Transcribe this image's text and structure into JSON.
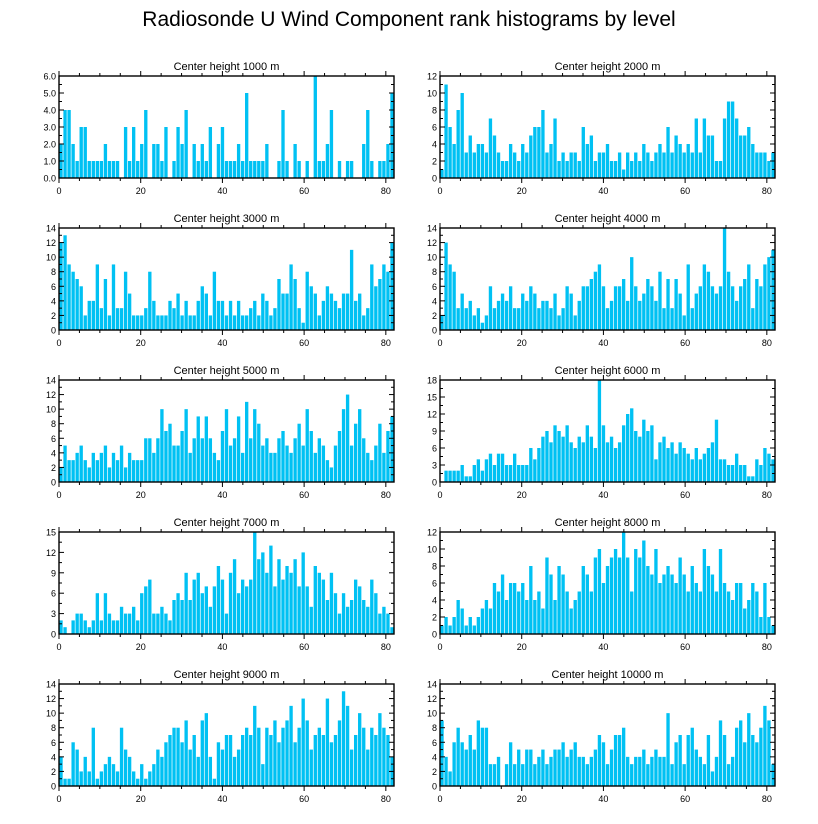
{
  "title": "Radiosonde U Wind Component rank histograms by level",
  "colors": {
    "bar": "#00c1f3",
    "axis": "#000000",
    "background": "#ffffff"
  },
  "chart_data": [
    {
      "type": "bar",
      "title": "Center height 1000 m",
      "xlim": [
        0,
        82
      ],
      "ylim": [
        0,
        6
      ],
      "yticks": [
        0,
        1,
        2,
        3,
        4,
        5,
        6
      ],
      "ytick_labels": [
        "0.0",
        "1.0",
        "2.0",
        "3.0",
        "4.0",
        "5.0",
        "6.0"
      ],
      "xticks": [
        0,
        20,
        40,
        60,
        80
      ],
      "xtick_labels": [
        "0",
        "20",
        "40",
        "60",
        "80"
      ],
      "values": [
        2,
        4,
        4,
        2,
        1,
        3,
        3,
        1,
        1,
        1,
        1,
        2,
        1,
        1,
        1,
        0,
        3,
        1,
        3,
        1,
        2,
        4,
        0,
        2,
        2,
        1,
        3,
        0,
        1,
        3,
        2,
        4,
        0,
        2,
        1,
        2,
        1,
        3,
        0,
        2,
        3,
        1,
        1,
        1,
        2,
        1,
        5,
        1,
        1,
        1,
        1,
        2,
        0,
        0,
        1,
        4,
        1,
        0,
        2,
        1,
        0,
        1,
        0,
        6,
        1,
        1,
        2,
        4,
        0,
        1,
        0,
        1,
        1,
        0,
        0,
        2,
        4,
        1,
        0,
        1,
        1,
        2,
        5
      ]
    },
    {
      "type": "bar",
      "title": "Center height 2000 m",
      "xlim": [
        0,
        82
      ],
      "ylim": [
        0,
        12
      ],
      "yticks": [
        0,
        2,
        4,
        6,
        8,
        10,
        12
      ],
      "ytick_labels": [
        "0",
        "2",
        "4",
        "6",
        "8",
        "10",
        "12"
      ],
      "xticks": [
        0,
        20,
        40,
        60,
        80
      ],
      "xtick_labels": [
        "0",
        "20",
        "40",
        "60",
        "80"
      ],
      "values": [
        1,
        11,
        6,
        4,
        8,
        10,
        3,
        5,
        3,
        4,
        4,
        3,
        7,
        5,
        3,
        2,
        2,
        4,
        3,
        2,
        4,
        3,
        5,
        6,
        6,
        8,
        3,
        4,
        7,
        2,
        3,
        2,
        3,
        3,
        2,
        6,
        4,
        5,
        2,
        3,
        3,
        4,
        2,
        2,
        3,
        1,
        3,
        2,
        3,
        2,
        4,
        3,
        2,
        3,
        4,
        3,
        6,
        3,
        5,
        4,
        3,
        4,
        3,
        7,
        3,
        7,
        5,
        5,
        2,
        2,
        7,
        9,
        9,
        7,
        5,
        5,
        6,
        4,
        3,
        3,
        3,
        2,
        3
      ]
    },
    {
      "type": "bar",
      "title": "Center height 3000 m",
      "xlim": [
        0,
        82
      ],
      "ylim": [
        0,
        14
      ],
      "yticks": [
        0,
        2,
        4,
        6,
        8,
        10,
        12,
        14
      ],
      "ytick_labels": [
        "0",
        "2",
        "4",
        "6",
        "8",
        "10",
        "12",
        "14"
      ],
      "xticks": [
        0,
        20,
        40,
        60,
        80
      ],
      "xtick_labels": [
        "0",
        "20",
        "40",
        "60",
        "80"
      ],
      "values": [
        12,
        13,
        9,
        8,
        7,
        6,
        2,
        4,
        4,
        9,
        3,
        7,
        2,
        9,
        3,
        3,
        8,
        5,
        2,
        2,
        2,
        3,
        8,
        4,
        2,
        2,
        2,
        4,
        3,
        5,
        2,
        4,
        2,
        2,
        4,
        6,
        5,
        2,
        8,
        4,
        4,
        2,
        4,
        2,
        4,
        2,
        2,
        3,
        4,
        2,
        5,
        4,
        2,
        3,
        7,
        5,
        5,
        9,
        7,
        3,
        1,
        8,
        6,
        5,
        2,
        4,
        6,
        5,
        4,
        3,
        5,
        5,
        11,
        4,
        5,
        2,
        3,
        9,
        6,
        7,
        9,
        8,
        12
      ]
    },
    {
      "type": "bar",
      "title": "Center height 4000 m",
      "xlim": [
        0,
        82
      ],
      "ylim": [
        0,
        14
      ],
      "yticks": [
        0,
        2,
        4,
        6,
        8,
        10,
        12,
        14
      ],
      "ytick_labels": [
        "0",
        "2",
        "4",
        "6",
        "8",
        "10",
        "12",
        "14"
      ],
      "xticks": [
        0,
        20,
        40,
        60,
        80
      ],
      "xtick_labels": [
        "0",
        "20",
        "40",
        "60",
        "80"
      ],
      "values": [
        2,
        12,
        9,
        8,
        3,
        5,
        3,
        4,
        2,
        3,
        1,
        2,
        6,
        3,
        4,
        5,
        4,
        6,
        3,
        3,
        5,
        4,
        6,
        5,
        3,
        4,
        4,
        3,
        5,
        2,
        3,
        6,
        5,
        2,
        4,
        6,
        6,
        7,
        8,
        9,
        6,
        3,
        4,
        6,
        6,
        7,
        4,
        10,
        6,
        4,
        5,
        7,
        6,
        4,
        8,
        3,
        7,
        3,
        7,
        5,
        2,
        9,
        3,
        5,
        6,
        9,
        8,
        6,
        5,
        6,
        14,
        8,
        6,
        4,
        6,
        7,
        9,
        3,
        7,
        6,
        9,
        10,
        11
      ]
    },
    {
      "type": "bar",
      "title": "Center height 5000 m",
      "xlim": [
        0,
        82
      ],
      "ylim": [
        0,
        14
      ],
      "yticks": [
        0,
        2,
        4,
        6,
        8,
        10,
        12,
        14
      ],
      "ytick_labels": [
        "0",
        "2",
        "4",
        "6",
        "8",
        "10",
        "12",
        "14"
      ],
      "xticks": [
        0,
        20,
        40,
        60,
        80
      ],
      "xtick_labels": [
        "0",
        "20",
        "40",
        "60",
        "80"
      ],
      "values": [
        2,
        5,
        3,
        3,
        4,
        5,
        3,
        2,
        4,
        3,
        4,
        5,
        2,
        4,
        3,
        5,
        2,
        4,
        3,
        3,
        3,
        6,
        6,
        4,
        6,
        10,
        7,
        8,
        5,
        5,
        7,
        10,
        4,
        6,
        9,
        6,
        9,
        6,
        4,
        3,
        7,
        10,
        5,
        6,
        9,
        4,
        11,
        6,
        10,
        8,
        5,
        6,
        4,
        4,
        6,
        7,
        5,
        4,
        6,
        8,
        5,
        10,
        7,
        4,
        6,
        5,
        3,
        2,
        5,
        7,
        10,
        12,
        5,
        8,
        10,
        6,
        4,
        3,
        5,
        8,
        4,
        7,
        9
      ]
    },
    {
      "type": "bar",
      "title": "Center height 6000 m",
      "xlim": [
        0,
        82
      ],
      "ylim": [
        0,
        18
      ],
      "yticks": [
        0,
        3,
        6,
        9,
        12,
        15,
        18
      ],
      "ytick_labels": [
        "0",
        "3",
        "6",
        "9",
        "12",
        "15",
        "18"
      ],
      "xticks": [
        0,
        20,
        40,
        60,
        80
      ],
      "xtick_labels": [
        "0",
        "20",
        "40",
        "60",
        "80"
      ],
      "values": [
        0,
        2,
        2,
        2,
        2,
        3,
        1,
        1,
        3,
        4,
        2,
        4,
        5,
        3,
        5,
        5,
        3,
        3,
        5,
        3,
        3,
        3,
        6,
        4,
        6,
        8,
        9,
        7,
        10,
        9,
        8,
        10,
        7,
        6,
        8,
        7,
        10,
        8,
        6,
        18,
        10,
        7,
        8,
        6,
        7,
        10,
        12,
        13,
        9,
        8,
        11,
        9,
        10,
        4,
        7,
        8,
        6,
        7,
        5,
        7,
        6,
        5,
        4,
        6,
        4,
        5,
        6,
        7,
        11,
        4,
        4,
        3,
        3,
        5,
        3,
        3,
        1,
        1,
        4,
        3,
        6,
        5,
        4
      ]
    },
    {
      "type": "bar",
      "title": "Center height 7000 m",
      "xlim": [
        0,
        82
      ],
      "ylim": [
        0,
        15
      ],
      "yticks": [
        0,
        3,
        6,
        9,
        12,
        15
      ],
      "ytick_labels": [
        "0",
        "3",
        "6",
        "9",
        "12",
        "15"
      ],
      "xticks": [
        0,
        20,
        40,
        60,
        80
      ],
      "xtick_labels": [
        "0",
        "20",
        "40",
        "60",
        "80"
      ],
      "values": [
        2,
        1,
        0,
        2,
        3,
        3,
        2,
        1,
        2,
        6,
        2,
        6,
        3,
        2,
        2,
        4,
        3,
        3,
        4,
        2,
        6,
        7,
        8,
        3,
        3,
        4,
        3,
        2,
        5,
        6,
        5,
        9,
        5,
        8,
        9,
        6,
        7,
        4,
        7,
        10,
        8,
        3,
        9,
        11,
        6,
        8,
        7,
        8,
        15,
        11,
        12,
        9,
        13,
        7,
        11,
        8,
        10,
        9,
        11,
        7,
        12,
        7,
        4,
        10,
        9,
        8,
        5,
        9,
        6,
        3,
        6,
        4,
        5,
        8,
        7,
        5,
        4,
        8,
        6,
        3,
        4,
        3,
        1
      ]
    },
    {
      "type": "bar",
      "title": "Center height 8000 m",
      "xlim": [
        0,
        82
      ],
      "ylim": [
        0,
        12
      ],
      "yticks": [
        0,
        2,
        4,
        6,
        8,
        10,
        12
      ],
      "ytick_labels": [
        "0",
        "2",
        "4",
        "6",
        "8",
        "10",
        "12"
      ],
      "xticks": [
        0,
        20,
        40,
        60,
        80
      ],
      "xtick_labels": [
        "0",
        "20",
        "40",
        "60",
        "80"
      ],
      "values": [
        1,
        2,
        1,
        2,
        4,
        3,
        1,
        2,
        1,
        2,
        3,
        4,
        3,
        6,
        5,
        7,
        4,
        6,
        6,
        5,
        6,
        4,
        8,
        4,
        5,
        3,
        9,
        7,
        4,
        8,
        7,
        5,
        3,
        4,
        5,
        8,
        7,
        5,
        9,
        10,
        6,
        8,
        9,
        10,
        9,
        12,
        9,
        5,
        10,
        9,
        11,
        8,
        7,
        10,
        6,
        7,
        8,
        7,
        6,
        9,
        7,
        5,
        8,
        6,
        5,
        10,
        8,
        7,
        5,
        10,
        6,
        5,
        4,
        6,
        6,
        3,
        4,
        6,
        5,
        2,
        6,
        2,
        1
      ]
    },
    {
      "type": "bar",
      "title": "Center height 9000 m",
      "xlim": [
        0,
        82
      ],
      "ylim": [
        0,
        14
      ],
      "yticks": [
        0,
        2,
        4,
        6,
        8,
        10,
        12,
        14
      ],
      "ytick_labels": [
        "0",
        "2",
        "4",
        "6",
        "8",
        "10",
        "12",
        "14"
      ],
      "xticks": [
        0,
        20,
        40,
        60,
        80
      ],
      "xtick_labels": [
        "0",
        "20",
        "40",
        "60",
        "80"
      ],
      "values": [
        4,
        1,
        1,
        6,
        5,
        2,
        4,
        2,
        8,
        1,
        2,
        3,
        4,
        3,
        2,
        8,
        5,
        4,
        2,
        1,
        3,
        1,
        2,
        3,
        5,
        4,
        6,
        7,
        8,
        8,
        6,
        9,
        5,
        7,
        4,
        9,
        10,
        4,
        1,
        6,
        5,
        7,
        7,
        4,
        5,
        7,
        8,
        7,
        11,
        8,
        3,
        8,
        7,
        9,
        6,
        8,
        9,
        11,
        6,
        8,
        12,
        9,
        5,
        7,
        8,
        7,
        12,
        6,
        7,
        9,
        13,
        11,
        5,
        7,
        10,
        8,
        5,
        8,
        7,
        10,
        8,
        7,
        4
      ]
    },
    {
      "type": "bar",
      "title": "Center height 10000 m",
      "xlim": [
        0,
        82
      ],
      "ylim": [
        0,
        14
      ],
      "yticks": [
        0,
        2,
        4,
        6,
        8,
        10,
        12,
        14
      ],
      "ytick_labels": [
        "0",
        "2",
        "4",
        "6",
        "8",
        "10",
        "12",
        "14"
      ],
      "xticks": [
        0,
        20,
        40,
        60,
        80
      ],
      "xtick_labels": [
        "0",
        "20",
        "40",
        "60",
        "80"
      ],
      "values": [
        9,
        4,
        2,
        6,
        8,
        6,
        5,
        7,
        5,
        9,
        8,
        8,
        3,
        3,
        4,
        0,
        3,
        6,
        3,
        5,
        3,
        5,
        5,
        3,
        4,
        5,
        3,
        4,
        5,
        5,
        6,
        4,
        5,
        6,
        4,
        4,
        3,
        4,
        5,
        7,
        6,
        3,
        5,
        7,
        7,
        8,
        4,
        3,
        4,
        4,
        5,
        3,
        4,
        5,
        4,
        4,
        10,
        3,
        6,
        7,
        3,
        7,
        8,
        5,
        4,
        3,
        7,
        2,
        4,
        9,
        7,
        3,
        4,
        8,
        9,
        6,
        10,
        7,
        6,
        8,
        11,
        9,
        3
      ]
    }
  ]
}
